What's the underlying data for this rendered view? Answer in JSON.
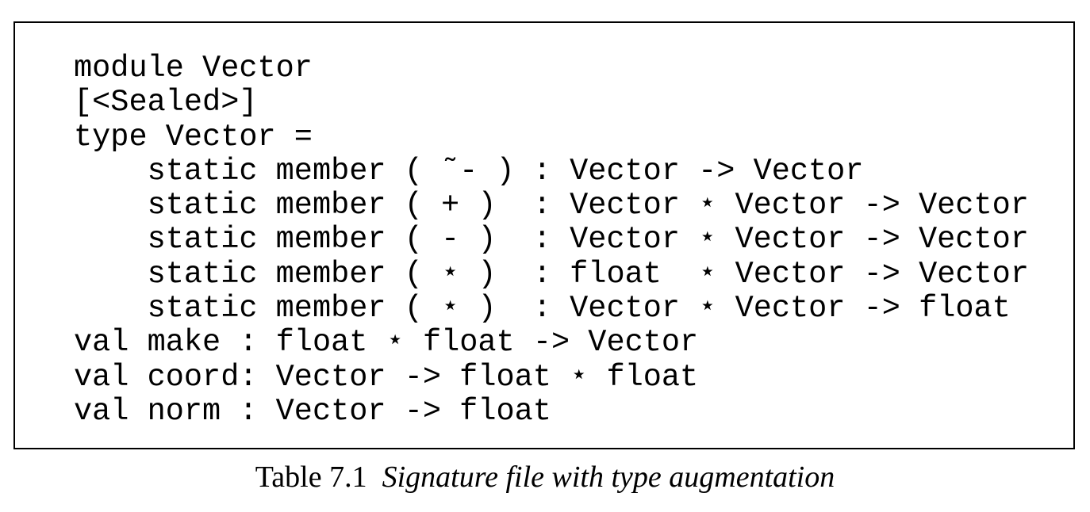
{
  "code": {
    "lines": [
      "module Vector",
      "[<Sealed>]",
      "type Vector =",
      "    static member ( ˜- ) : Vector -> Vector",
      "    static member ( + )  : Vector ⋆ Vector -> Vector",
      "    static member ( - )  : Vector ⋆ Vector -> Vector",
      "    static member ( ⋆ )  : float  ⋆ Vector -> Vector",
      "    static member ( ⋆ )  : Vector ⋆ Vector -> float",
      "val make : float ⋆ float -> Vector",
      "val coord: Vector -> float ⋆ float",
      "val norm : Vector -> float"
    ]
  },
  "caption": {
    "label": "Table 7.1",
    "text": "Signature file with type augmentation"
  }
}
